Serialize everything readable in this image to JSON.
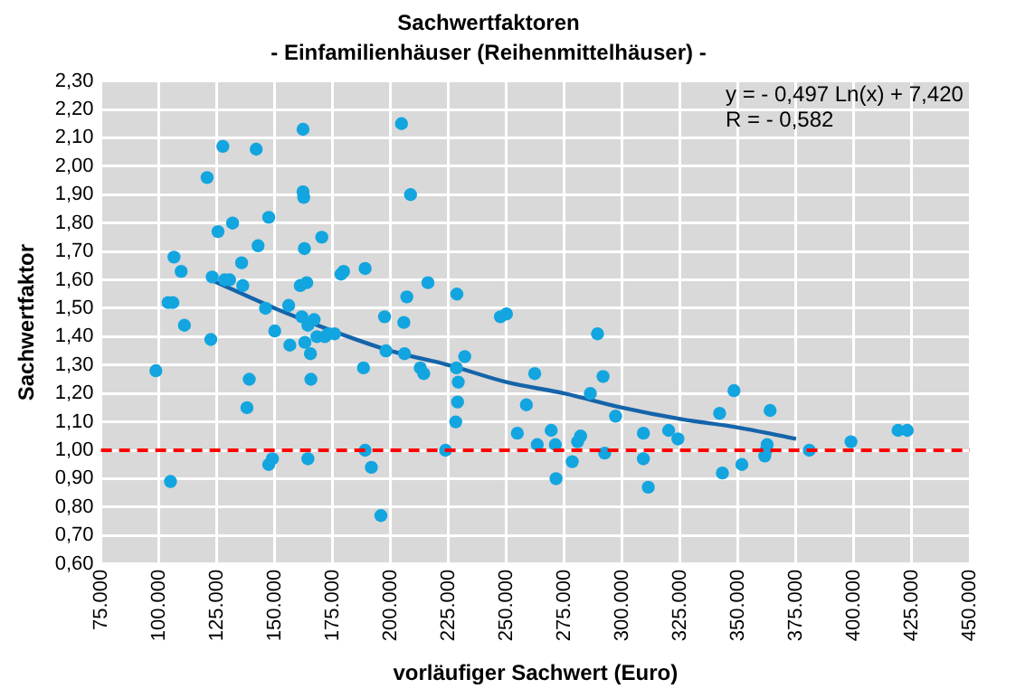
{
  "chart_data": {
    "type": "scatter",
    "title": "Sachwertfaktoren",
    "subtitle": "- Einfamilienhäuser (Reihenmittelhäuser) -",
    "xlabel": "vorläufiger Sachwert (Euro)",
    "ylabel": "Sachwertfaktor",
    "annotations": [
      "y = - 0,497 Ln(x) + 7,420",
      "R = - 0,582"
    ],
    "xlim": [
      75000,
      450000
    ],
    "ylim": [
      0.6,
      2.3
    ],
    "xticks": [
      {
        "value": 75000,
        "label": "75.000"
      },
      {
        "value": 100000,
        "label": "100.000"
      },
      {
        "value": 125000,
        "label": "125.000"
      },
      {
        "value": 150000,
        "label": "150.000"
      },
      {
        "value": 175000,
        "label": "175.000"
      },
      {
        "value": 200000,
        "label": "200.000"
      },
      {
        "value": 225000,
        "label": "225.000"
      },
      {
        "value": 250000,
        "label": "250.000"
      },
      {
        "value": 275000,
        "label": "275.000"
      },
      {
        "value": 300000,
        "label": "300.000"
      },
      {
        "value": 325000,
        "label": "325.000"
      },
      {
        "value": 350000,
        "label": "350.000"
      },
      {
        "value": 375000,
        "label": "375.000"
      },
      {
        "value": 400000,
        "label": "400.000"
      },
      {
        "value": 425000,
        "label": "425.000"
      },
      {
        "value": 450000,
        "label": "450.000"
      }
    ],
    "yticks": [
      {
        "value": 0.6,
        "label": "0,60"
      },
      {
        "value": 0.7,
        "label": "0,70"
      },
      {
        "value": 0.8,
        "label": "0,80"
      },
      {
        "value": 0.9,
        "label": "0,90"
      },
      {
        "value": 1.0,
        "label": "1,00"
      },
      {
        "value": 1.1,
        "label": "1,10"
      },
      {
        "value": 1.2,
        "label": "1,20"
      },
      {
        "value": 1.3,
        "label": "1,30"
      },
      {
        "value": 1.4,
        "label": "1,40"
      },
      {
        "value": 1.5,
        "label": "1,50"
      },
      {
        "value": 1.6,
        "label": "1,60"
      },
      {
        "value": 1.7,
        "label": "1,70"
      },
      {
        "value": 1.8,
        "label": "1,80"
      },
      {
        "value": 1.9,
        "label": "1,90"
      },
      {
        "value": 2.0,
        "label": "2,00"
      },
      {
        "value": 2.1,
        "label": "2,10"
      },
      {
        "value": 2.2,
        "label": "2,20"
      },
      {
        "value": 2.3,
        "label": "2,30"
      }
    ],
    "grid": true,
    "legend": false,
    "ref_lines": [
      {
        "axis": "y",
        "value": 1.0,
        "color": "#ff0000",
        "line_style": "dashed"
      }
    ],
    "series": [
      {
        "color": "#12a5e0",
        "marker": "circle",
        "x": [
          98700,
          104000,
          106000,
          106500,
          109600,
          111000,
          105000,
          120800,
          122400,
          123000,
          125500,
          127600,
          128400,
          130500,
          131800,
          135700,
          136200,
          139000,
          138000,
          142000,
          142800,
          147400,
          146000,
          150000,
          147400,
          149000,
          156000,
          156500,
          162200,
          162200,
          162500,
          162800,
          161000,
          163800,
          161700,
          163000,
          164300,
          165400,
          165600,
          167000,
          168200,
          170300,
          171600,
          173200,
          164300,
          175800,
          178600,
          179700,
          189000,
          188300,
          189000,
          191700,
          195800,
          197400,
          198000,
          204700,
          208600,
          207000,
          205700,
          206000,
          216100,
          212800,
          214300,
          228600,
          232000,
          228400,
          229200,
          228900,
          228100,
          223700,
          247400,
          250000,
          262200,
          258600,
          254700,
          263300,
          269300,
          271100,
          271400,
          278400,
          280700,
          282000,
          289300,
          291700,
          286200,
          292400,
          297100,
          309100,
          309100,
          311200,
          320000,
          324000,
          342000,
          348200,
          343200,
          351600,
          363800,
          362500,
          361500,
          362000,
          380700,
          398700,
          419000,
          423000
        ],
        "values": [
          1.28,
          1.52,
          1.52,
          1.68,
          1.63,
          1.44,
          0.89,
          1.96,
          1.39,
          1.61,
          1.77,
          2.07,
          1.6,
          1.6,
          1.8,
          1.66,
          1.58,
          1.25,
          1.15,
          2.06,
          1.72,
          1.82,
          1.5,
          1.42,
          0.95,
          0.97,
          1.51,
          1.37,
          2.13,
          1.91,
          1.89,
          1.71,
          1.58,
          1.59,
          1.47,
          1.38,
          1.44,
          1.34,
          1.25,
          1.46,
          1.4,
          1.75,
          1.4,
          1.41,
          0.97,
          1.41,
          1.62,
          1.63,
          1.64,
          1.29,
          1.0,
          0.94,
          0.77,
          1.47,
          1.35,
          2.15,
          1.9,
          1.54,
          1.45,
          1.34,
          1.59,
          1.29,
          1.27,
          1.55,
          1.33,
          1.29,
          1.24,
          1.17,
          1.1,
          1.0,
          1.47,
          1.48,
          1.27,
          1.16,
          1.06,
          1.02,
          1.07,
          1.02,
          0.9,
          0.96,
          1.03,
          1.05,
          1.41,
          1.26,
          1.2,
          0.99,
          1.12,
          1.06,
          0.97,
          0.87,
          1.07,
          1.04,
          1.13,
          1.21,
          0.92,
          0.95,
          1.14,
          1.02,
          0.98,
          1.0,
          1.0,
          1.03,
          1.07,
          1.07
        ]
      },
      {
        "type": "line",
        "marker": "none",
        "color": "#1464aa",
        "x": [
          122500,
          150000,
          175000,
          200000,
          225000,
          250000,
          275000,
          300000,
          325000,
          350000,
          375000
        ],
        "values": [
          1.6,
          1.5,
          1.42,
          1.35,
          1.3,
          1.24,
          1.2,
          1.15,
          1.11,
          1.08,
          1.04
        ]
      }
    ]
  }
}
